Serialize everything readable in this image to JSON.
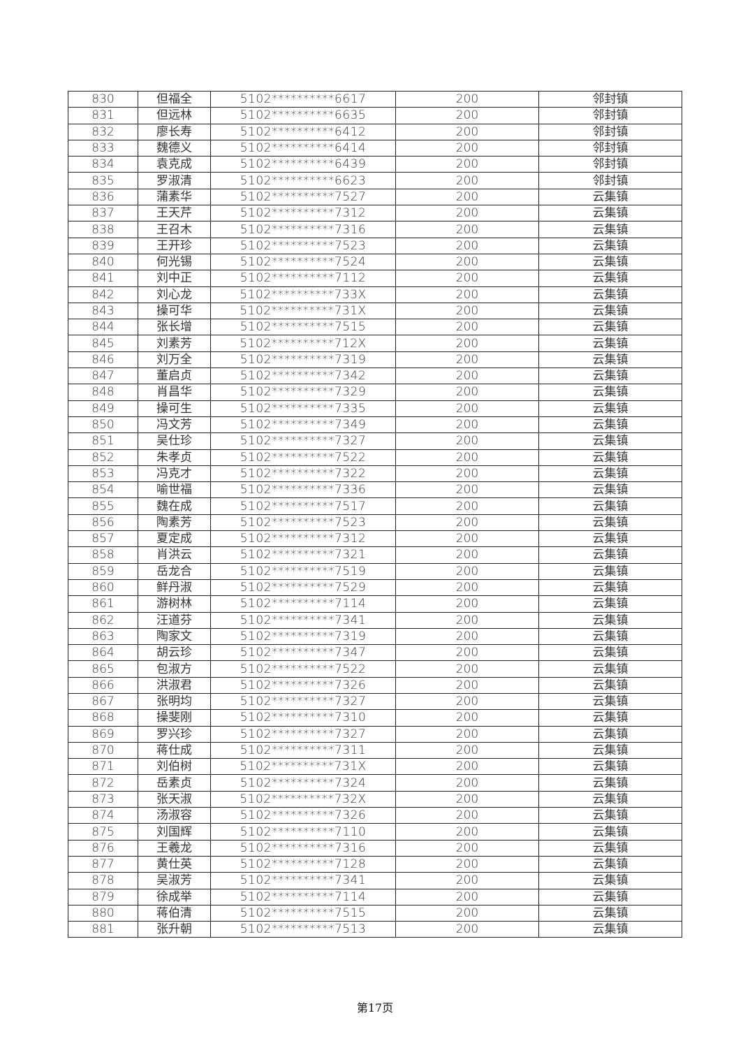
{
  "table": {
    "rows": [
      {
        "no": "830",
        "name": "但福全",
        "id": "5102**********6617",
        "amount": "200",
        "town": "邻封镇"
      },
      {
        "no": "831",
        "name": "但远林",
        "id": "5102**********6635",
        "amount": "200",
        "town": "邻封镇"
      },
      {
        "no": "832",
        "name": "廖长寿",
        "id": "5102**********6412",
        "amount": "200",
        "town": "邻封镇"
      },
      {
        "no": "833",
        "name": "魏德义",
        "id": "5102**********6414",
        "amount": "200",
        "town": "邻封镇"
      },
      {
        "no": "834",
        "name": "袁克成",
        "id": "5102**********6439",
        "amount": "200",
        "town": "邻封镇"
      },
      {
        "no": "835",
        "name": "罗淑清",
        "id": "5102**********6623",
        "amount": "200",
        "town": "邻封镇"
      },
      {
        "no": "836",
        "name": "蒲素华",
        "id": "5102**********7527",
        "amount": "200",
        "town": "云集镇"
      },
      {
        "no": "837",
        "name": "王天芹",
        "id": "5102**********7312",
        "amount": "200",
        "town": "云集镇"
      },
      {
        "no": "838",
        "name": "王召木",
        "id": "5102**********7316",
        "amount": "200",
        "town": "云集镇"
      },
      {
        "no": "839",
        "name": "王开珍",
        "id": "5102**********7523",
        "amount": "200",
        "town": "云集镇"
      },
      {
        "no": "840",
        "name": "何光锡",
        "id": "5102**********7524",
        "amount": "200",
        "town": "云集镇"
      },
      {
        "no": "841",
        "name": "刘中正",
        "id": "5102**********7112",
        "amount": "200",
        "town": "云集镇"
      },
      {
        "no": "842",
        "name": "刘心龙",
        "id": "5102**********733X",
        "amount": "200",
        "town": "云集镇"
      },
      {
        "no": "843",
        "name": "操可华",
        "id": "5102**********731X",
        "amount": "200",
        "town": "云集镇"
      },
      {
        "no": "844",
        "name": "张长增",
        "id": "5102**********7515",
        "amount": "200",
        "town": "云集镇"
      },
      {
        "no": "845",
        "name": "刘素芳",
        "id": "5102**********712X",
        "amount": "200",
        "town": "云集镇"
      },
      {
        "no": "846",
        "name": "刘万全",
        "id": "5102**********7319",
        "amount": "200",
        "town": "云集镇"
      },
      {
        "no": "847",
        "name": "董启贞",
        "id": "5102**********7342",
        "amount": "200",
        "town": "云集镇"
      },
      {
        "no": "848",
        "name": "肖昌华",
        "id": "5102**********7329",
        "amount": "200",
        "town": "云集镇"
      },
      {
        "no": "849",
        "name": "操可生",
        "id": "5102**********7335",
        "amount": "200",
        "town": "云集镇"
      },
      {
        "no": "850",
        "name": "冯文芳",
        "id": "5102**********7349",
        "amount": "200",
        "town": "云集镇"
      },
      {
        "no": "851",
        "name": "吴仕珍",
        "id": "5102**********7327",
        "amount": "200",
        "town": "云集镇"
      },
      {
        "no": "852",
        "name": "朱孝贞",
        "id": "5102**********7522",
        "amount": "200",
        "town": "云集镇"
      },
      {
        "no": "853",
        "name": "冯克才",
        "id": "5102**********7322",
        "amount": "200",
        "town": "云集镇"
      },
      {
        "no": "854",
        "name": "喻世福",
        "id": "5102**********7336",
        "amount": "200",
        "town": "云集镇"
      },
      {
        "no": "855",
        "name": "魏在成",
        "id": "5102**********7517",
        "amount": "200",
        "town": "云集镇"
      },
      {
        "no": "856",
        "name": "陶素芳",
        "id": "5102**********7523",
        "amount": "200",
        "town": "云集镇"
      },
      {
        "no": "857",
        "name": "夏定成",
        "id": "5102**********7312",
        "amount": "200",
        "town": "云集镇"
      },
      {
        "no": "858",
        "name": "肖洪云",
        "id": "5102**********7321",
        "amount": "200",
        "town": "云集镇"
      },
      {
        "no": "859",
        "name": "岳龙合",
        "id": "5102**********7519",
        "amount": "200",
        "town": "云集镇"
      },
      {
        "no": "860",
        "name": "鲜丹淑",
        "id": "5102**********7529",
        "amount": "200",
        "town": "云集镇"
      },
      {
        "no": "861",
        "name": "游树林",
        "id": "5102**********7114",
        "amount": "200",
        "town": "云集镇"
      },
      {
        "no": "862",
        "name": "汪道芬",
        "id": "5102**********7341",
        "amount": "200",
        "town": "云集镇"
      },
      {
        "no": "863",
        "name": "陶家文",
        "id": "5102**********7319",
        "amount": "200",
        "town": "云集镇"
      },
      {
        "no": "864",
        "name": "胡云珍",
        "id": "5102**********7347",
        "amount": "200",
        "town": "云集镇"
      },
      {
        "no": "865",
        "name": "包淑方",
        "id": "5102**********7522",
        "amount": "200",
        "town": "云集镇"
      },
      {
        "no": "866",
        "name": "洪淑君",
        "id": "5102**********7326",
        "amount": "200",
        "town": "云集镇"
      },
      {
        "no": "867",
        "name": "张明均",
        "id": "5102**********7327",
        "amount": "200",
        "town": "云集镇"
      },
      {
        "no": "868",
        "name": "操斐刚",
        "id": "5102**********7310",
        "amount": "200",
        "town": "云集镇"
      },
      {
        "no": "869",
        "name": "罗兴珍",
        "id": "5102**********7327",
        "amount": "200",
        "town": "云集镇"
      },
      {
        "no": "870",
        "name": "蒋仕成",
        "id": "5102**********7311",
        "amount": "200",
        "town": "云集镇"
      },
      {
        "no": "871",
        "name": "刘伯树",
        "id": "5102**********731X",
        "amount": "200",
        "town": "云集镇"
      },
      {
        "no": "872",
        "name": "岳素贞",
        "id": "5102**********7324",
        "amount": "200",
        "town": "云集镇"
      },
      {
        "no": "873",
        "name": "张天淑",
        "id": "5102**********732X",
        "amount": "200",
        "town": "云集镇"
      },
      {
        "no": "874",
        "name": "汤淑容",
        "id": "5102**********7326",
        "amount": "200",
        "town": "云集镇"
      },
      {
        "no": "875",
        "name": "刘国辉",
        "id": "5102**********7110",
        "amount": "200",
        "town": "云集镇"
      },
      {
        "no": "876",
        "name": "王羲龙",
        "id": "5102**********7316",
        "amount": "200",
        "town": "云集镇"
      },
      {
        "no": "877",
        "name": "黄仕英",
        "id": "5102**********7128",
        "amount": "200",
        "town": "云集镇"
      },
      {
        "no": "878",
        "name": "吴淑芳",
        "id": "5102**********7341",
        "amount": "200",
        "town": "云集镇"
      },
      {
        "no": "879",
        "name": "徐成举",
        "id": "5102**********7114",
        "amount": "200",
        "town": "云集镇"
      },
      {
        "no": "880",
        "name": "蒋伯清",
        "id": "5102**********7515",
        "amount": "200",
        "town": "云集镇"
      },
      {
        "no": "881",
        "name": "张升朝",
        "id": "5102**********7513",
        "amount": "200",
        "town": "云集镇"
      }
    ]
  },
  "footer": {
    "page_label": "第17页"
  }
}
